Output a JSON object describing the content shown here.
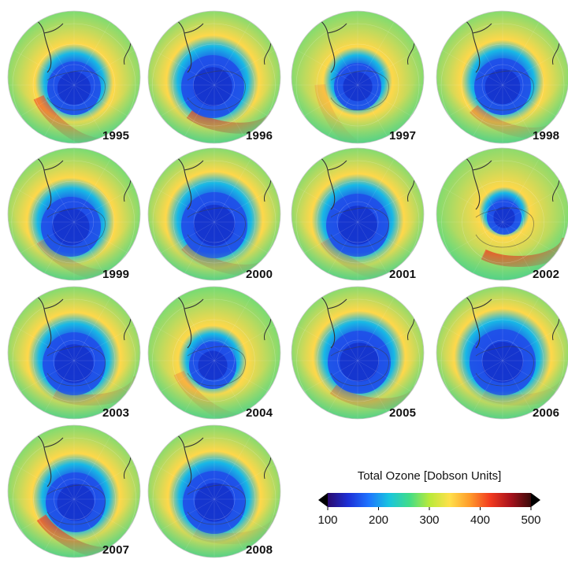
{
  "panels": [
    {
      "year": "1995"
    },
    {
      "year": "1996"
    },
    {
      "year": "1997"
    },
    {
      "year": "1998"
    },
    {
      "year": "1999"
    },
    {
      "year": "2000"
    },
    {
      "year": "2001"
    },
    {
      "year": "2002"
    },
    {
      "year": "2003"
    },
    {
      "year": "2004"
    },
    {
      "year": "2005"
    },
    {
      "year": "2006"
    },
    {
      "year": "2007"
    },
    {
      "year": "2008"
    }
  ],
  "legend": {
    "title": "Total Ozone [Dobson Units]",
    "ticks": [
      "100",
      "200",
      "300",
      "400",
      "500"
    ],
    "range": [
      100,
      500
    ],
    "colors": [
      "#2a0a6e",
      "#1d2fd6",
      "#1e73ff",
      "#18c4e0",
      "#3fdc8a",
      "#b9ea3a",
      "#ffe04a",
      "#ff9a2a",
      "#f23a1f",
      "#a8121c",
      "#3a0a0a"
    ]
  },
  "colors": {
    "background": "#ffffff",
    "ring_green": "#5fdc7a",
    "ring_yellow": "#ffd84a",
    "hole_blue": "#1f4fe8",
    "hole_deep": "#1330c8",
    "collar_red": "#ec3a1e"
  }
}
